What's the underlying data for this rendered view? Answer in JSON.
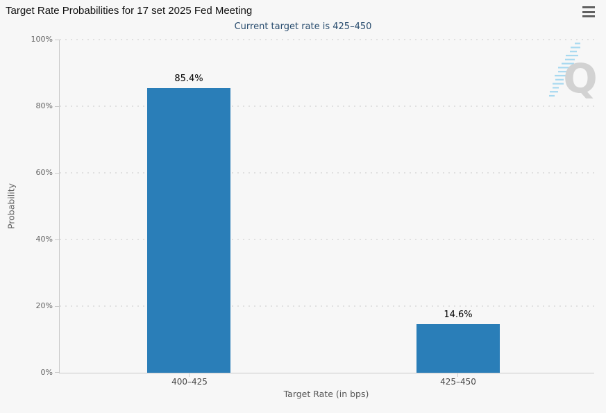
{
  "chart_data": {
    "type": "bar",
    "title": "Target Rate Probabilities for 17 set 2025 Fed Meeting",
    "subtitle": "Current target rate is 425–450",
    "categories": [
      "400–425",
      "425–450"
    ],
    "values": [
      85.4,
      14.6
    ],
    "data_labels": [
      "85.4%",
      "14.6%"
    ],
    "xlabel": "Target Rate (in bps)",
    "ylabel": "Probability",
    "ylim": [
      0,
      100
    ],
    "yticks": [
      0,
      20,
      40,
      60,
      80,
      100
    ],
    "ytick_labels": [
      "0%",
      "20%",
      "40%",
      "60%",
      "80%",
      "100%"
    ],
    "grid": "dotted horizontal gridlines",
    "legend": "none",
    "bar_color": "#2a7eb8",
    "subtitle_color": "#274b6d",
    "background_color": "#f7f7f7"
  },
  "header": {
    "menu_icon": "hamburger-menu-icon"
  },
  "watermark": {
    "logo": "quandl-q-logo"
  }
}
